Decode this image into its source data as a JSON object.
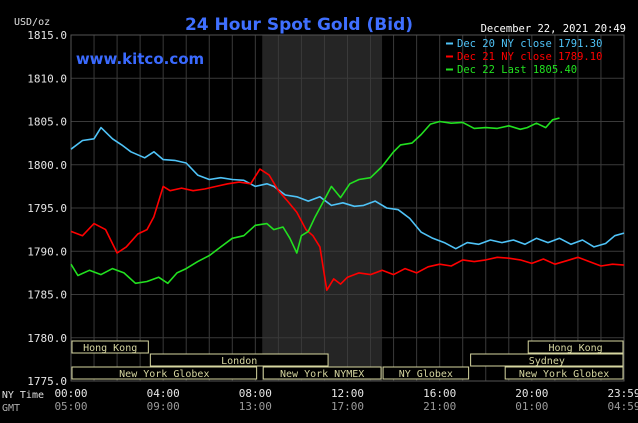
{
  "chart_data": {
    "type": "line",
    "title": "24 Hour Spot Gold (Bid)",
    "watermark": "www.kitco.com",
    "timestamp": "December 22, 2021 20:49",
    "ylabel": "USD/oz",
    "ylim": [
      1775,
      1815
    ],
    "yticks": [
      "1815.0",
      "1810.0",
      "1805.0",
      "1800.0",
      "1795.0",
      "1790.0",
      "1785.0",
      "1780.0",
      "1775.0"
    ],
    "xlim": [
      0,
      24
    ],
    "x_row_label_ny": "NY Time",
    "x_row_label_gmt": "GMT",
    "xticks_ny": [
      "00:00",
      "04:00",
      "08:00",
      "12:00",
      "16:00",
      "20:00",
      "23:59"
    ],
    "xticks_gmt": [
      "05:00",
      "09:00",
      "13:00",
      "17:00",
      "21:00",
      "01:00",
      "04:59"
    ],
    "xtick_positions_hours": [
      0,
      4,
      8,
      12,
      16,
      20,
      24
    ],
    "shaded_session_hours": [
      8.3,
      13.5
    ],
    "grid": true,
    "legend_position": "top-right",
    "colors": {
      "series_blue": "#4fc3f7",
      "series_red": "#ff0000",
      "series_green": "#22e020",
      "title": "#3f6fff",
      "watermark": "#3a6aff",
      "timestamp": "#ffffff",
      "session_box": "#d6d6a0",
      "grid": "#3a3a3a",
      "shaded": "#252525"
    },
    "series": [
      {
        "name": "Dec 20 NY close 1791.30",
        "color": "#4fc3f7",
        "x": [
          0,
          0.5,
          1,
          1.3,
          1.8,
          2.2,
          2.6,
          3.2,
          3.6,
          4,
          4.5,
          5,
          5.5,
          6,
          6.5,
          7,
          7.5,
          8,
          8.5,
          8.8,
          9.3,
          9.8,
          10.3,
          10.8,
          11.3,
          11.8,
          12.3,
          12.7,
          13.2,
          13.7,
          14.2,
          14.7,
          15.2,
          15.7,
          16.2,
          16.7,
          17.2,
          17.7,
          18.2,
          18.7,
          19.2,
          19.7,
          20.2,
          20.7,
          21.2,
          21.7,
          22.2,
          22.7,
          23.2,
          23.6,
          24
        ],
        "y": [
          1801.8,
          1802.8,
          1803,
          1804.3,
          1803,
          1802.3,
          1801.5,
          1800.8,
          1801.5,
          1800.6,
          1800.5,
          1800.2,
          1798.8,
          1798.3,
          1798.5,
          1798.3,
          1798.2,
          1797.5,
          1797.8,
          1797.5,
          1796.5,
          1796.3,
          1795.8,
          1796.3,
          1795.3,
          1795.6,
          1795.2,
          1795.3,
          1795.8,
          1795,
          1794.8,
          1793.8,
          1792.2,
          1791.5,
          1791,
          1790.3,
          1791,
          1790.8,
          1791.3,
          1791,
          1791.3,
          1790.8,
          1791.5,
          1791,
          1791.5,
          1790.8,
          1791.3,
          1790.5,
          1790.9,
          1791.8,
          1792.1
        ]
      },
      {
        "name": "Dec 21 NY close 1789.10",
        "color": "#ff0000",
        "x": [
          0,
          0.5,
          1,
          1.5,
          2,
          2.4,
          2.9,
          3.3,
          3.6,
          4,
          4.3,
          4.8,
          5.3,
          5.8,
          6.3,
          6.8,
          7.3,
          7.8,
          8.2,
          8.6,
          9,
          9.4,
          9.8,
          10.2,
          10.5,
          10.8,
          11.1,
          11.4,
          11.7,
          12,
          12.5,
          13,
          13.5,
          14,
          14.5,
          15,
          15.5,
          16,
          16.5,
          17,
          17.5,
          18,
          18.5,
          19,
          19.5,
          20,
          20.5,
          21,
          21.5,
          22,
          22.5,
          23,
          23.5,
          24
        ],
        "y": [
          1792.3,
          1791.8,
          1793.2,
          1792.5,
          1789.8,
          1790.5,
          1792,
          1792.5,
          1794,
          1797.5,
          1797,
          1797.3,
          1797,
          1797.2,
          1797.5,
          1797.8,
          1798,
          1797.8,
          1799.5,
          1798.8,
          1797,
          1795.8,
          1794.5,
          1792.5,
          1791.8,
          1790.5,
          1785.5,
          1786.8,
          1786.2,
          1787,
          1787.5,
          1787.3,
          1787.8,
          1787.3,
          1788,
          1787.5,
          1788.2,
          1788.5,
          1788.3,
          1789,
          1788.8,
          1789,
          1789.3,
          1789.2,
          1789,
          1788.6,
          1789.1,
          1788.5,
          1788.9,
          1789.3,
          1788.8,
          1788.3,
          1788.5,
          1788.4
        ]
      },
      {
        "name": "Dec 22 Last 1805.40",
        "color": "#22e020",
        "x": [
          0,
          0.3,
          0.8,
          1.3,
          1.8,
          2.3,
          2.8,
          3.3,
          3.8,
          4.2,
          4.6,
          5,
          5.5,
          6,
          6.5,
          7,
          7.5,
          8,
          8.5,
          8.8,
          9.2,
          9.5,
          9.8,
          10,
          10.3,
          10.6,
          10.9,
          11.3,
          11.7,
          12.1,
          12.5,
          13,
          13.5,
          14,
          14.3,
          14.8,
          15.2,
          15.6,
          16,
          16.5,
          17,
          17.5,
          18,
          18.5,
          19,
          19.5,
          19.8,
          20.2,
          20.6,
          20.9,
          21.2
        ],
        "y": [
          1788.5,
          1787.2,
          1787.8,
          1787.3,
          1788,
          1787.5,
          1786.3,
          1786.5,
          1787,
          1786.3,
          1787.5,
          1788,
          1788.8,
          1789.5,
          1790.5,
          1791.5,
          1791.8,
          1793,
          1793.2,
          1792.5,
          1792.8,
          1791.5,
          1789.8,
          1791.8,
          1792.3,
          1794,
          1795.5,
          1797.5,
          1796.2,
          1797.8,
          1798.3,
          1798.5,
          1799.8,
          1801.5,
          1802.3,
          1802.5,
          1803.5,
          1804.7,
          1805,
          1804.8,
          1804.9,
          1804.2,
          1804.3,
          1804.2,
          1804.5,
          1804.1,
          1804.3,
          1804.8,
          1804.3,
          1805.2,
          1805.4
        ]
      }
    ],
    "sessions": [
      {
        "label": "Hong Kong",
        "start": 0,
        "end": 3.4,
        "row": 0
      },
      {
        "label": "London",
        "start": 3.4,
        "end": 11.2,
        "row": 1
      },
      {
        "label": "New York Globex",
        "start": 0,
        "end": 8.1,
        "row": 2
      },
      {
        "label": "New York NYMEX",
        "start": 8.3,
        "end": 13.5,
        "row": 2
      },
      {
        "label": "NY Globex",
        "start": 13.5,
        "end": 17.3,
        "row": 2
      },
      {
        "label": "Hong Kong",
        "start": 19.8,
        "end": 24,
        "row": 0
      },
      {
        "label": "Sydney",
        "start": 17.3,
        "end": 24,
        "row": 1
      },
      {
        "label": "New York Globex",
        "start": 18.8,
        "end": 24,
        "row": 2
      }
    ]
  }
}
